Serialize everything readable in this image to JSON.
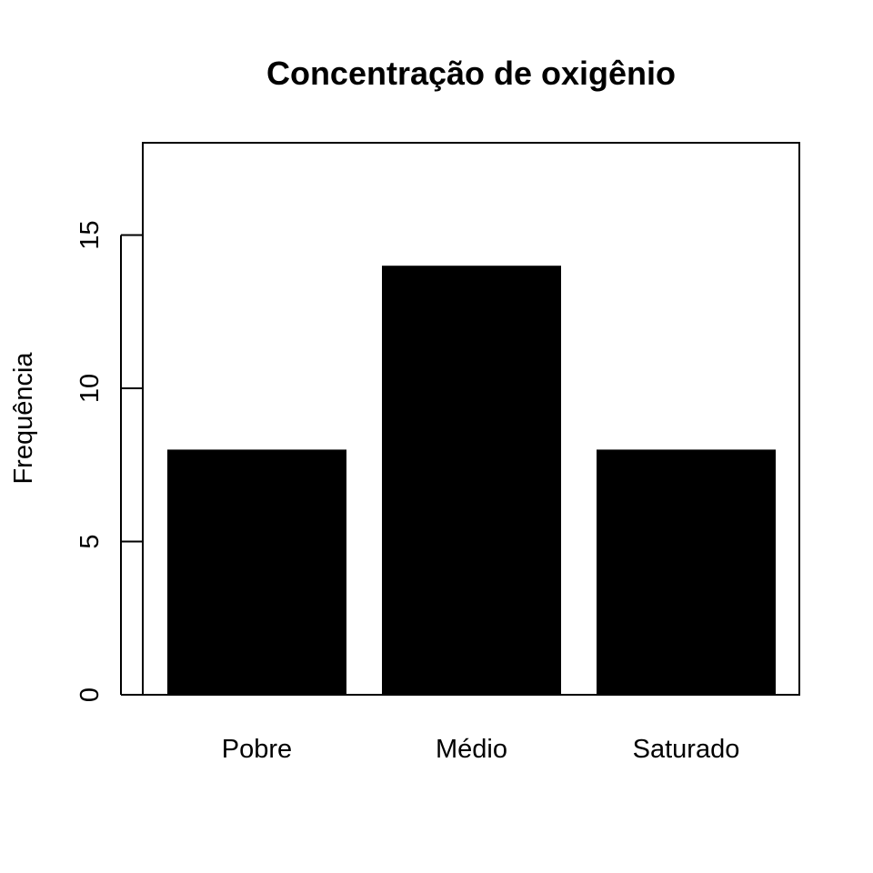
{
  "chart_data": {
    "type": "bar",
    "title": "Concentração de oxigênio",
    "xlabel": "",
    "ylabel": "Frequência",
    "categories": [
      "Pobre",
      "Médio",
      "Saturado"
    ],
    "values": [
      8,
      14,
      8
    ],
    "ylim": [
      0,
      18
    ],
    "yticks": [
      0,
      5,
      10,
      15
    ],
    "bar_color": "#000000",
    "grid": false,
    "legend": "none"
  }
}
